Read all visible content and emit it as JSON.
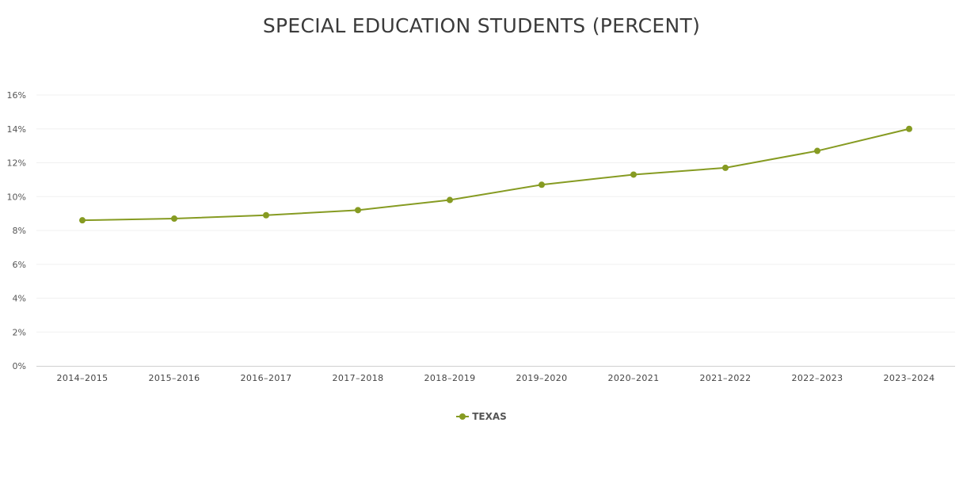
{
  "chart_data": {
    "type": "line",
    "title": "SPECIAL EDUCATION STUDENTS (PERCENT)",
    "xlabel": "",
    "ylabel": "",
    "categories": [
      "2014–2015",
      "2015–2016",
      "2016–2017",
      "2017–2018",
      "2018–2019",
      "2019–2020",
      "2020–2021",
      "2021–2022",
      "2022–2023",
      "2023–2024"
    ],
    "series": [
      {
        "name": "TEXAS",
        "color": "#869b22",
        "values": [
          8.6,
          8.7,
          8.9,
          9.2,
          9.8,
          10.7,
          11.3,
          11.7,
          12.7,
          14.0
        ]
      }
    ],
    "ylim": [
      0,
      16
    ],
    "yticks": [
      0,
      2,
      4,
      6,
      8,
      10,
      12,
      14,
      16
    ],
    "ytick_suffix": "%",
    "grid": true,
    "legend_position": "bottom-center"
  }
}
